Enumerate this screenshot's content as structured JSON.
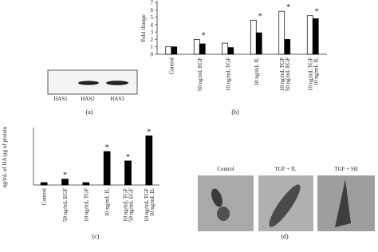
{
  "chart_data": [
    {
      "type": "bar",
      "panel_label": "(b)",
      "y_label": "Fold change",
      "categories": [
        [
          "Control"
        ],
        [
          "50 ng/mL EGF"
        ],
        [
          "10 ng/mL TGF"
        ],
        [
          "10 ng/mL IL"
        ],
        [
          "10 ng/mL TGF",
          "50 ng/mL EGF"
        ],
        [
          "10 ng/mL TGF",
          "10 ng/mL IL"
        ]
      ],
      "series": [
        {
          "color": "#ffffff",
          "values": [
            1.0,
            2.0,
            1.5,
            4.6,
            5.8,
            5.2
          ]
        },
        {
          "color": "#000000",
          "values": [
            1.0,
            1.4,
            0.9,
            2.9,
            2.0,
            4.8
          ]
        }
      ],
      "significance": [
        null,
        "*",
        null,
        "*",
        "*",
        "*"
      ],
      "ylim": [
        0,
        7
      ],
      "yticks": [
        0,
        1,
        2,
        3,
        4,
        5,
        6,
        7
      ]
    },
    {
      "type": "bar",
      "panel_label": "(c)",
      "y_label": "ng/mL of HA/µg of protein",
      "categories": [
        [
          "Control"
        ],
        [
          "50 ng/mL EGF"
        ],
        [
          "10 ng/mL TGF"
        ],
        [
          "10 ng/mL IL"
        ],
        [
          "10 ng/mL TGF",
          "50 ng/mL EGF"
        ],
        [
          "10 ng/mL TGF",
          "10 ng/mL IL"
        ]
      ],
      "series": [
        {
          "color": "#000000",
          "values": [
            0.7,
            1.7,
            0.7,
            9.6,
            6.9,
            14.1
          ]
        }
      ],
      "significance": [
        null,
        "*",
        null,
        "*",
        "*",
        "*"
      ],
      "ylim": [
        0,
        16
      ]
    }
  ],
  "blot": {
    "lanes": [
      "HAS1",
      "HAS2",
      "HAS3"
    ],
    "panel_label": "(a)"
  },
  "micrographs": {
    "panels": [
      "Control",
      "TGF + IL",
      "TGF + SH"
    ],
    "panel_label": "(d)"
  }
}
